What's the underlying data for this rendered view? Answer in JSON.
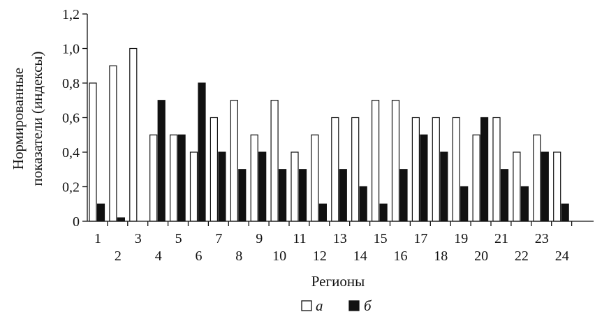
{
  "chart_data": {
    "type": "bar",
    "xlabel": "Регионы",
    "ylabel": [
      "Нормированные",
      "показатели (индексы)"
    ],
    "ylim": [
      0,
      1.2
    ],
    "yticks": [
      "0",
      "0,2",
      "0,4",
      "0,6",
      "0,8",
      "1,0",
      "1,2"
    ],
    "categories": [
      "1",
      "2",
      "3",
      "4",
      "5",
      "6",
      "7",
      "8",
      "9",
      "10",
      "11",
      "12",
      "13",
      "14",
      "15",
      "16",
      "17",
      "18",
      "19",
      "20",
      "21",
      "22",
      "23",
      "24"
    ],
    "series": [
      {
        "name": "а",
        "color": "#ffffff",
        "values": [
          0.8,
          0.9,
          1.0,
          0.5,
          0.5,
          0.4,
          0.6,
          0.7,
          0.5,
          0.7,
          0.4,
          0.5,
          0.6,
          0.6,
          0.7,
          0.7,
          0.6,
          0.6,
          0.6,
          0.5,
          0.6,
          0.4,
          0.5,
          0.4
        ]
      },
      {
        "name": "б",
        "color": "#111111",
        "values": [
          0.1,
          0.02,
          0,
          0.7,
          0.5,
          0.8,
          0.4,
          0.3,
          0.4,
          0.3,
          0.3,
          0.1,
          0.3,
          0.2,
          0.1,
          0.3,
          0.5,
          0.4,
          0.2,
          0.6,
          0.3,
          0.2,
          0.4,
          0.1
        ]
      }
    ],
    "legend": "bottom-center",
    "grid": false
  }
}
